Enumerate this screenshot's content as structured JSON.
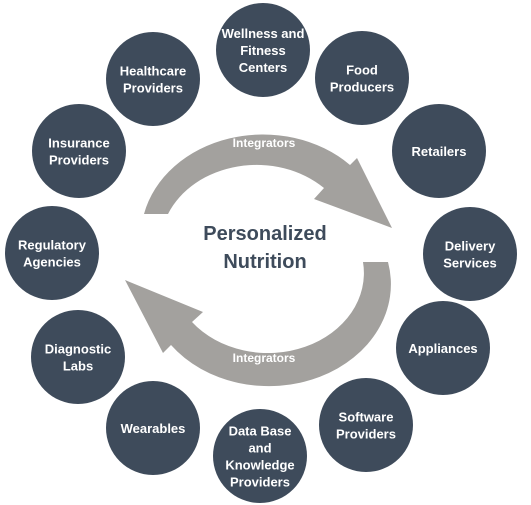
{
  "center": {
    "lines": [
      "Personalized",
      "Nutrition"
    ]
  },
  "cycle": {
    "top_label": "Integrators",
    "bottom_label": "Integrators"
  },
  "nodes": [
    {
      "id": "wellness-and-fitness-centers",
      "lines": [
        "Wellness and",
        "Fitness",
        "Centers"
      ]
    },
    {
      "id": "food-producers",
      "lines": [
        "Food",
        "Producers"
      ]
    },
    {
      "id": "retailers",
      "lines": [
        "Retailers"
      ]
    },
    {
      "id": "delivery-services",
      "lines": [
        "Delivery",
        "Services"
      ]
    },
    {
      "id": "appliances",
      "lines": [
        "Appliances"
      ]
    },
    {
      "id": "software-providers",
      "lines": [
        "Software",
        "Providers"
      ]
    },
    {
      "id": "data-base-and-knowledge-providers",
      "lines": [
        "Data Base",
        "and",
        "Knowledge",
        "Providers"
      ]
    },
    {
      "id": "wearables",
      "lines": [
        "Wearables"
      ]
    },
    {
      "id": "diagnostic-labs",
      "lines": [
        "Diagnostic",
        "Labs"
      ]
    },
    {
      "id": "regulatory-agencies",
      "lines": [
        "Regulatory",
        "Agencies"
      ]
    },
    {
      "id": "insurance-providers",
      "lines": [
        "Insurance",
        "Providers"
      ]
    },
    {
      "id": "healthcare-providers",
      "lines": [
        "Healthcare",
        "Providers"
      ]
    }
  ],
  "colors": {
    "node_fill": "#3e4b5b",
    "arrow_fill": "#a3a19e",
    "center_text": "#3e4b5b",
    "node_text": "#ffffff"
  }
}
